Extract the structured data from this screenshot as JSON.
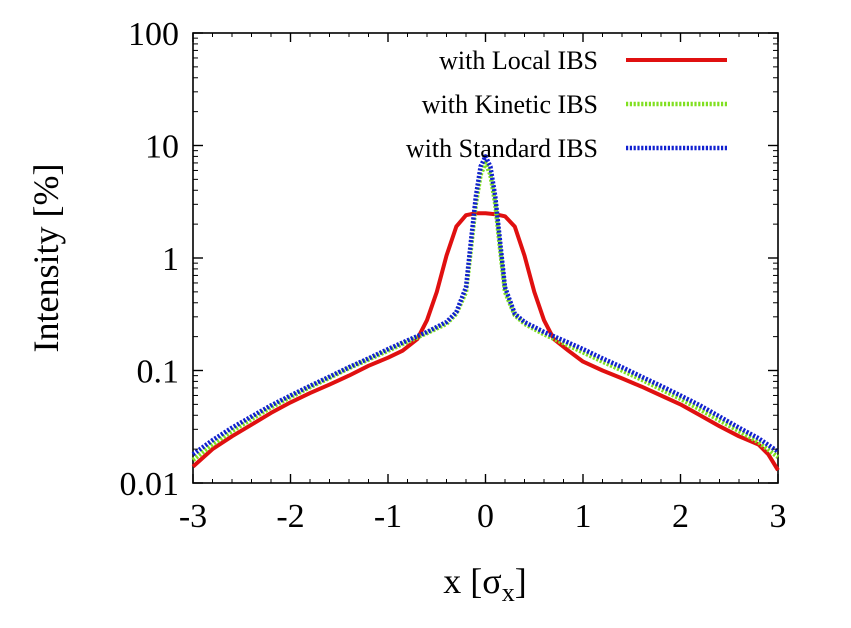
{
  "chart_data": {
    "type": "line",
    "title": "",
    "xlabel": "x [σx]",
    "xlabel_main": "x [σ",
    "xlabel_sub": "x",
    "xlabel_end": "]",
    "ylabel": "Intensity [%]",
    "xlim": [
      -3,
      3
    ],
    "ylim": [
      0.01,
      100
    ],
    "yscale": "log",
    "grid": false,
    "legend_position": "top-right",
    "x_ticks": [
      -3,
      -2,
      -1,
      0,
      1,
      2,
      3
    ],
    "x_tick_labels": [
      "-3",
      "-2",
      "-1",
      "0",
      "1",
      "2",
      "3"
    ],
    "y_ticks": [
      0.01,
      0.1,
      1,
      10,
      100
    ],
    "y_tick_labels": [
      "0.01",
      "0.1",
      "1",
      "10",
      "100"
    ],
    "series": [
      {
        "name": "with Local IBS",
        "color": "#e01010",
        "style": "solid",
        "x": [
          -3,
          -2.8,
          -2.6,
          -2.4,
          -2.2,
          -2.0,
          -1.8,
          -1.6,
          -1.4,
          -1.2,
          -1.0,
          -0.85,
          -0.7,
          -0.6,
          -0.5,
          -0.4,
          -0.3,
          -0.2,
          -0.1,
          0.0,
          0.1,
          0.2,
          0.3,
          0.4,
          0.5,
          0.6,
          0.7,
          0.85,
          1.0,
          1.2,
          1.4,
          1.6,
          1.8,
          2.0,
          2.2,
          2.4,
          2.6,
          2.8,
          2.9,
          3.0
        ],
        "y": [
          0.014,
          0.02,
          0.026,
          0.033,
          0.042,
          0.052,
          0.063,
          0.075,
          0.09,
          0.11,
          0.13,
          0.15,
          0.19,
          0.28,
          0.5,
          1.05,
          1.9,
          2.4,
          2.5,
          2.5,
          2.45,
          2.35,
          1.9,
          1.05,
          0.5,
          0.28,
          0.19,
          0.15,
          0.12,
          0.1,
          0.085,
          0.072,
          0.06,
          0.05,
          0.04,
          0.032,
          0.026,
          0.022,
          0.018,
          0.013
        ]
      },
      {
        "name": "with Kinetic IBS",
        "color": "#80e020",
        "style": "dotted",
        "x": [
          -3,
          -2.8,
          -2.6,
          -2.4,
          -2.2,
          -2.0,
          -1.8,
          -1.6,
          -1.4,
          -1.2,
          -1.0,
          -0.8,
          -0.6,
          -0.4,
          -0.3,
          -0.2,
          -0.15,
          -0.1,
          -0.05,
          0.0,
          0.05,
          0.1,
          0.15,
          0.2,
          0.3,
          0.4,
          0.6,
          0.8,
          1.0,
          1.2,
          1.4,
          1.6,
          1.8,
          2.0,
          2.2,
          2.4,
          2.6,
          2.8,
          3.0
        ],
        "y": [
          0.016,
          0.022,
          0.029,
          0.037,
          0.047,
          0.058,
          0.071,
          0.086,
          0.105,
          0.125,
          0.15,
          0.18,
          0.215,
          0.26,
          0.32,
          0.5,
          1.2,
          3.0,
          5.5,
          7.0,
          5.5,
          3.0,
          1.2,
          0.5,
          0.31,
          0.26,
          0.21,
          0.175,
          0.145,
          0.12,
          0.1,
          0.083,
          0.068,
          0.056,
          0.045,
          0.036,
          0.029,
          0.023,
          0.017
        ]
      },
      {
        "name": "with Standard IBS",
        "color": "#1020d0",
        "style": "dotted",
        "x": [
          -3,
          -2.8,
          -2.6,
          -2.4,
          -2.2,
          -2.0,
          -1.8,
          -1.6,
          -1.4,
          -1.2,
          -1.0,
          -0.8,
          -0.6,
          -0.4,
          -0.3,
          -0.2,
          -0.15,
          -0.1,
          -0.05,
          0.0,
          0.05,
          0.1,
          0.15,
          0.2,
          0.3,
          0.4,
          0.6,
          0.8,
          1.0,
          1.2,
          1.4,
          1.6,
          1.8,
          2.0,
          2.2,
          2.4,
          2.6,
          2.8,
          3.0
        ],
        "y": [
          0.018,
          0.024,
          0.031,
          0.039,
          0.049,
          0.06,
          0.073,
          0.088,
          0.107,
          0.128,
          0.155,
          0.185,
          0.22,
          0.27,
          0.33,
          0.55,
          1.4,
          3.5,
          6.5,
          8.0,
          6.5,
          3.5,
          1.4,
          0.55,
          0.32,
          0.27,
          0.22,
          0.185,
          0.155,
          0.128,
          0.107,
          0.088,
          0.073,
          0.06,
          0.049,
          0.039,
          0.031,
          0.025,
          0.019
        ]
      }
    ]
  }
}
